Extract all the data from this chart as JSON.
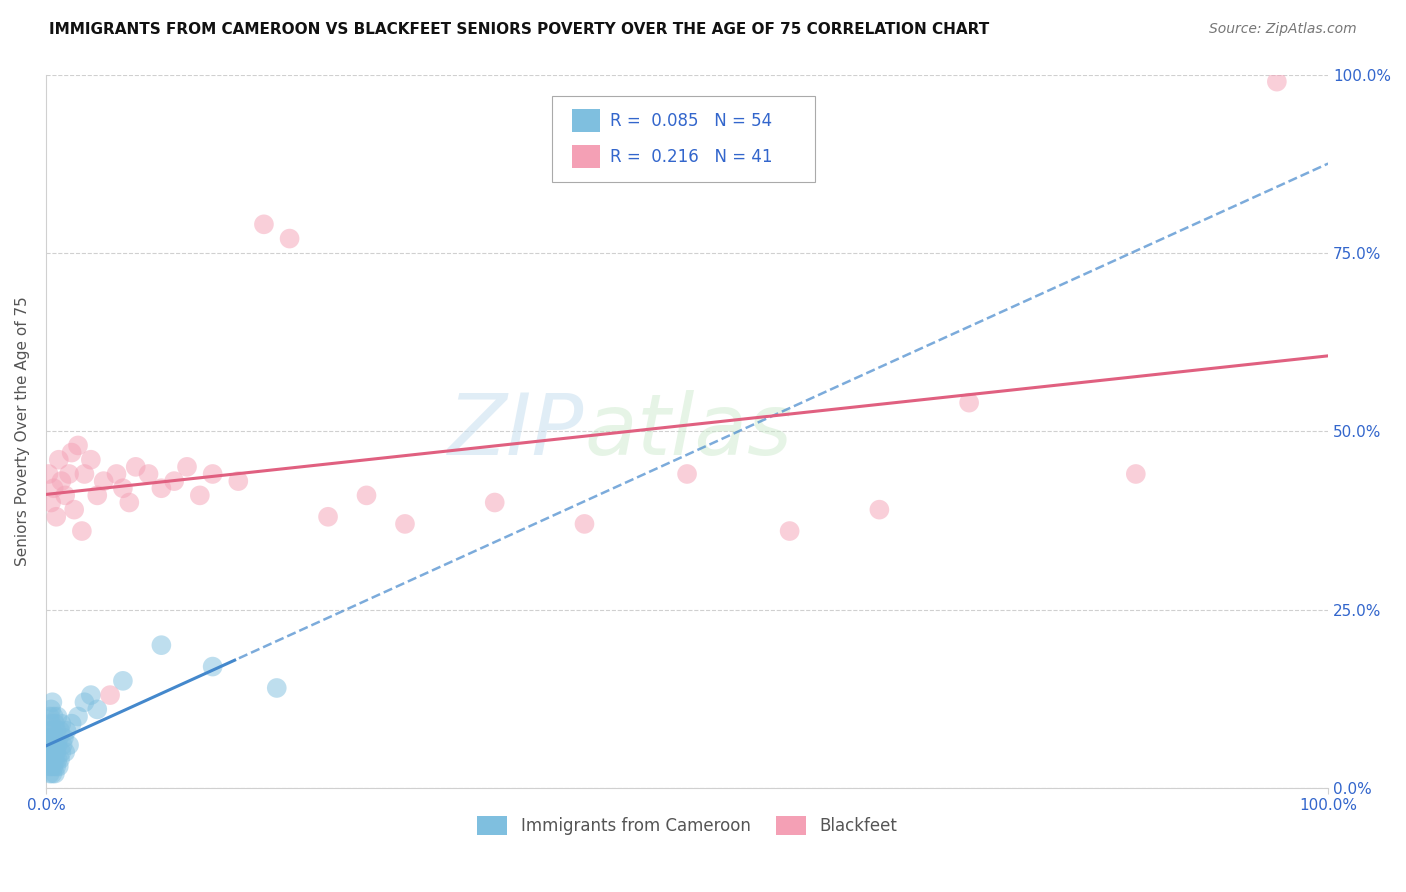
{
  "title": "IMMIGRANTS FROM CAMEROON VS BLACKFEET SENIORS POVERTY OVER THE AGE OF 75 CORRELATION CHART",
  "source": "Source: ZipAtlas.com",
  "ylabel": "Seniors Poverty Over the Age of 75",
  "watermark_zip": "ZIP",
  "watermark_atlas": "atlas",
  "legend_labels": [
    "Immigrants from Cameroon",
    "Blackfeet"
  ],
  "r_values": [
    0.085,
    0.216
  ],
  "n_values": [
    54,
    41
  ],
  "color_blue_scatter": "#7fbfdf",
  "color_pink_scatter": "#f4a0b5",
  "color_blue_line": "#4488cc",
  "color_pink_line": "#e06080",
  "xmin": 0.0,
  "xmax": 1.0,
  "ymin": 0.0,
  "ymax": 1.0,
  "ytick_labels": [
    "0.0%",
    "25.0%",
    "50.0%",
    "75.0%",
    "100.0%"
  ],
  "ytick_values": [
    0.0,
    0.25,
    0.5,
    0.75,
    1.0
  ],
  "xtick_labels": [
    "0.0%",
    "100.0%"
  ],
  "xtick_values": [
    0.0,
    1.0
  ],
  "blue_x": [
    0.001,
    0.001,
    0.002,
    0.002,
    0.002,
    0.003,
    0.003,
    0.003,
    0.003,
    0.003,
    0.004,
    0.004,
    0.004,
    0.004,
    0.004,
    0.005,
    0.005,
    0.005,
    0.005,
    0.005,
    0.006,
    0.006,
    0.006,
    0.006,
    0.007,
    0.007,
    0.007,
    0.007,
    0.008,
    0.008,
    0.008,
    0.009,
    0.009,
    0.009,
    0.01,
    0.01,
    0.011,
    0.011,
    0.012,
    0.012,
    0.013,
    0.014,
    0.015,
    0.016,
    0.018,
    0.02,
    0.025,
    0.03,
    0.035,
    0.04,
    0.06,
    0.09,
    0.13,
    0.18
  ],
  "blue_y": [
    0.04,
    0.06,
    0.03,
    0.05,
    0.07,
    0.02,
    0.04,
    0.06,
    0.08,
    0.1,
    0.03,
    0.05,
    0.07,
    0.09,
    0.11,
    0.02,
    0.04,
    0.06,
    0.08,
    0.12,
    0.03,
    0.05,
    0.07,
    0.1,
    0.02,
    0.04,
    0.06,
    0.09,
    0.03,
    0.05,
    0.08,
    0.04,
    0.06,
    0.1,
    0.03,
    0.07,
    0.04,
    0.08,
    0.05,
    0.09,
    0.06,
    0.07,
    0.05,
    0.08,
    0.06,
    0.09,
    0.1,
    0.12,
    0.13,
    0.11,
    0.15,
    0.2,
    0.17,
    0.14
  ],
  "pink_x": [
    0.002,
    0.004,
    0.006,
    0.008,
    0.01,
    0.012,
    0.015,
    0.018,
    0.02,
    0.022,
    0.025,
    0.028,
    0.03,
    0.035,
    0.04,
    0.045,
    0.05,
    0.055,
    0.06,
    0.065,
    0.07,
    0.08,
    0.09,
    0.1,
    0.11,
    0.12,
    0.13,
    0.15,
    0.17,
    0.19,
    0.22,
    0.25,
    0.28,
    0.35,
    0.42,
    0.5,
    0.58,
    0.65,
    0.72,
    0.85,
    0.96
  ],
  "pink_y": [
    0.44,
    0.4,
    0.42,
    0.38,
    0.46,
    0.43,
    0.41,
    0.44,
    0.47,
    0.39,
    0.48,
    0.36,
    0.44,
    0.46,
    0.41,
    0.43,
    0.13,
    0.44,
    0.42,
    0.4,
    0.45,
    0.44,
    0.42,
    0.43,
    0.45,
    0.41,
    0.44,
    0.43,
    0.79,
    0.77,
    0.38,
    0.41,
    0.37,
    0.4,
    0.37,
    0.44,
    0.36,
    0.39,
    0.54,
    0.44,
    0.99
  ],
  "background_color": "#ffffff",
  "grid_color": "#d0d0d0",
  "title_fontsize": 11,
  "label_fontsize": 11,
  "tick_fontsize": 11,
  "source_fontsize": 10
}
